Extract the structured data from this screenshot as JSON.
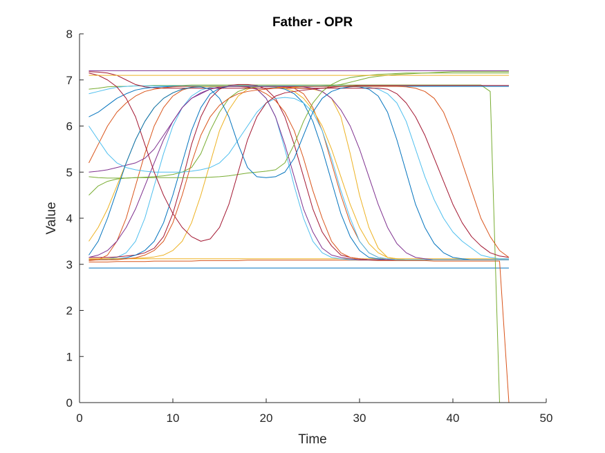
{
  "chart_data": {
    "type": "line",
    "title": "Father - OPR",
    "xlabel": "Time",
    "ylabel": "Value",
    "xlim": [
      0,
      50
    ],
    "ylim": [
      0,
      8
    ],
    "xticks": [
      0,
      10,
      20,
      30,
      40,
      50
    ],
    "yticks": [
      0,
      1,
      2,
      3,
      4,
      5,
      6,
      7,
      8
    ],
    "xtick_labels": [
      "0",
      "10",
      "20",
      "30",
      "40",
      "50"
    ],
    "ytick_labels": [
      "0",
      "1",
      "2",
      "3",
      "4",
      "5",
      "6",
      "7",
      "8"
    ],
    "grid": false,
    "legend": "none",
    "colors": [
      "#0072BD",
      "#D95319",
      "#EDB120",
      "#7E2F8E",
      "#77AC30",
      "#4DBEEE",
      "#A2142F"
    ],
    "x": [
      1,
      2,
      3,
      4,
      5,
      6,
      7,
      8,
      9,
      10,
      11,
      12,
      13,
      14,
      15,
      16,
      17,
      18,
      19,
      20,
      21,
      22,
      23,
      24,
      25,
      26,
      27,
      28,
      29,
      30,
      31,
      32,
      33,
      34,
      35,
      36,
      37,
      38,
      39,
      40,
      41,
      42,
      43,
      44,
      45,
      46
    ],
    "series": [
      {
        "values": [
          2.92,
          2.92,
          2.92,
          2.92,
          2.92,
          2.92,
          2.92,
          2.92,
          2.92,
          2.92,
          2.92,
          2.92,
          2.92,
          2.92,
          2.92,
          2.92,
          2.92,
          2.92,
          2.92,
          2.92,
          2.92,
          2.92,
          2.92,
          2.92,
          2.92,
          2.92,
          2.92,
          2.92,
          2.92,
          2.92,
          2.92,
          2.92,
          2.92,
          2.92,
          2.92,
          2.92,
          2.92,
          2.92,
          2.92,
          2.92,
          2.92,
          2.92,
          2.92,
          2.92,
          2.92,
          2.92
        ]
      },
      {
        "values": [
          3.05,
          3.05,
          3.05,
          3.06,
          3.06,
          3.06,
          3.06,
          3.07,
          3.07,
          3.07,
          3.07,
          3.07,
          3.08,
          3.08,
          3.08,
          3.08,
          3.08,
          3.09,
          3.09,
          3.09,
          3.09,
          3.09,
          3.09,
          3.09,
          3.09,
          3.09,
          3.09,
          3.09,
          3.09,
          3.09,
          3.09,
          3.08,
          3.08,
          3.08,
          3.08,
          3.08,
          3.08,
          3.07,
          3.07,
          3.07,
          3.07,
          3.07,
          3.07,
          3.07,
          3.07,
          0.0
        ]
      },
      {
        "values": [
          3.12,
          3.12,
          3.12,
          3.12,
          3.12,
          3.12,
          3.12,
          3.12,
          3.12,
          3.12,
          3.12,
          3.12,
          3.12,
          3.12,
          3.12,
          3.12,
          3.12,
          3.12,
          3.12,
          3.12,
          3.12,
          3.12,
          3.12,
          3.12,
          3.12,
          3.12,
          3.12,
          3.12,
          3.12,
          3.12,
          3.12,
          3.12,
          3.12,
          3.12,
          3.12,
          3.12,
          3.12,
          3.12,
          3.12,
          3.12,
          3.12,
          3.12,
          3.12,
          3.12,
          3.12,
          3.12
        ]
      },
      {
        "values": [
          7.2,
          7.2,
          7.2,
          7.2,
          7.2,
          7.2,
          7.2,
          7.2,
          7.2,
          7.2,
          7.2,
          7.2,
          7.2,
          7.2,
          7.2,
          7.2,
          7.2,
          7.2,
          7.2,
          7.2,
          7.2,
          7.2,
          7.2,
          7.2,
          7.2,
          7.2,
          7.2,
          7.2,
          7.2,
          7.2,
          7.2,
          7.2,
          7.2,
          7.2,
          7.2,
          7.2,
          7.2,
          7.2,
          7.2,
          7.2,
          7.2,
          7.2,
          7.2,
          7.2,
          7.2,
          7.2
        ]
      },
      {
        "values": [
          6.8,
          6.82,
          6.85,
          6.86,
          6.86,
          6.87,
          6.87,
          6.88,
          6.88,
          6.88,
          6.88,
          6.89,
          6.89,
          6.89,
          6.89,
          6.89,
          6.89,
          6.89,
          6.89,
          6.89,
          6.89,
          6.89,
          6.89,
          6.89,
          6.89,
          6.89,
          6.89,
          6.89,
          6.89,
          6.89,
          6.89,
          6.89,
          6.89,
          6.89,
          6.89,
          6.89,
          6.89,
          6.89,
          6.89,
          6.89,
          6.89,
          6.89,
          6.89,
          6.75,
          0.0,
          0.0
        ]
      },
      {
        "values": [
          3.1,
          3.1,
          3.12,
          3.15,
          3.25,
          3.5,
          4.0,
          4.7,
          5.4,
          6.0,
          6.4,
          6.65,
          6.78,
          6.84,
          6.86,
          6.87,
          6.87,
          6.85,
          6.8,
          6.6,
          6.2,
          5.5,
          4.7,
          4.0,
          3.5,
          3.25,
          3.15,
          3.12,
          3.1,
          3.1,
          3.1,
          3.1,
          3.1,
          3.1,
          3.1,
          3.1,
          3.1,
          3.1,
          3.1,
          3.1,
          3.1,
          3.1,
          3.1,
          3.1,
          3.1,
          3.1
        ]
      },
      {
        "values": [
          3.15,
          3.15,
          3.15,
          3.16,
          3.18,
          3.2,
          3.25,
          3.35,
          3.6,
          4.1,
          4.8,
          5.6,
          6.2,
          6.6,
          6.8,
          6.88,
          6.9,
          6.9,
          6.88,
          6.8,
          6.6,
          6.2,
          5.6,
          4.9,
          4.2,
          3.7,
          3.4,
          3.2,
          3.15,
          3.12,
          3.1,
          3.1,
          3.1,
          3.1,
          3.1,
          3.1,
          3.1,
          3.1,
          3.1,
          3.1,
          3.1,
          3.1,
          3.1,
          3.1,
          3.1,
          3.1
        ]
      },
      {
        "values": [
          3.1,
          3.1,
          3.1,
          3.12,
          3.14,
          3.2,
          3.3,
          3.5,
          3.9,
          4.5,
          5.2,
          5.9,
          6.4,
          6.7,
          6.82,
          6.86,
          6.87,
          6.87,
          6.87,
          6.86,
          6.84,
          6.8,
          6.7,
          6.5,
          6.1,
          5.5,
          4.8,
          4.1,
          3.6,
          3.3,
          3.15,
          3.12,
          3.1,
          3.1,
          3.1,
          3.1,
          3.1,
          3.1,
          3.1,
          3.1,
          3.1,
          3.1,
          3.1,
          3.1,
          3.1,
          3.1
        ]
      },
      {
        "values": [
          3.08,
          3.1,
          3.2,
          3.5,
          4.0,
          4.7,
          5.4,
          6.0,
          6.4,
          6.65,
          6.78,
          6.84,
          6.86,
          6.87,
          6.87,
          6.87,
          6.86,
          6.84,
          6.8,
          6.7,
          6.55,
          6.3,
          5.9,
          5.3,
          4.6,
          4.0,
          3.5,
          3.25,
          3.15,
          3.12,
          3.1,
          3.1,
          3.1,
          3.1,
          3.1,
          3.1,
          3.1,
          3.1,
          3.1,
          3.1,
          3.1,
          3.1,
          3.1,
          3.1,
          3.1,
          3.1
        ]
      },
      {
        "values": [
          3.12,
          3.12,
          3.12,
          3.12,
          3.12,
          3.13,
          3.14,
          3.16,
          3.2,
          3.3,
          3.5,
          3.9,
          4.5,
          5.2,
          5.9,
          6.35,
          6.65,
          6.8,
          6.85,
          6.87,
          6.87,
          6.86,
          6.84,
          6.82,
          6.8,
          6.75,
          6.6,
          6.2,
          5.4,
          4.5,
          3.8,
          3.35,
          3.15,
          3.12,
          3.1,
          3.1,
          3.1,
          3.1,
          3.1,
          3.1,
          3.1,
          3.1,
          3.1,
          3.1,
          3.1,
          3.1
        ]
      },
      {
        "values": [
          5.0,
          5.02,
          5.05,
          5.1,
          5.15,
          5.2,
          5.3,
          5.5,
          5.8,
          6.1,
          6.4,
          6.6,
          6.7,
          6.8,
          6.85,
          6.87,
          6.87,
          6.85,
          6.8,
          6.6,
          6.2,
          5.6,
          4.9,
          4.2,
          3.7,
          3.35,
          3.2,
          3.15,
          3.12,
          3.1,
          3.1,
          3.1,
          3.1,
          3.1,
          3.1,
          3.1,
          3.1,
          3.1,
          3.1,
          3.1,
          3.1,
          3.1,
          3.1,
          3.1,
          3.1,
          3.1
        ]
      },
      {
        "values": [
          4.9,
          4.88,
          4.87,
          4.87,
          4.87,
          4.88,
          4.89,
          4.9,
          4.92,
          4.95,
          5.0,
          5.1,
          5.4,
          5.9,
          6.3,
          6.6,
          6.75,
          6.82,
          6.85,
          6.86,
          6.86,
          6.86,
          6.86,
          6.86,
          6.86,
          6.87,
          6.88,
          6.9,
          6.95,
          7.0,
          7.05,
          7.08,
          7.1,
          7.12,
          7.13,
          7.14,
          7.15,
          7.16,
          7.17,
          7.18,
          7.18,
          7.18,
          7.18,
          7.18,
          7.18,
          7.18
        ]
      },
      {
        "values": [
          6.7,
          6.75,
          6.8,
          6.84,
          6.86,
          6.87,
          6.87,
          6.87,
          6.87,
          6.87,
          6.87,
          6.87,
          6.87,
          6.87,
          6.87,
          6.87,
          6.87,
          6.87,
          6.87,
          6.87,
          6.87,
          6.87,
          6.87,
          6.87,
          6.87,
          6.87,
          6.87,
          6.87,
          6.87,
          6.86,
          6.84,
          6.8,
          6.7,
          6.5,
          6.1,
          5.5,
          4.9,
          4.4,
          4.0,
          3.7,
          3.5,
          3.35,
          3.2,
          3.15,
          3.12,
          3.12
        ]
      },
      {
        "values": [
          7.18,
          7.17,
          7.15,
          7.1,
          7.0,
          6.9,
          6.85,
          6.83,
          6.82,
          6.82,
          6.82,
          6.82,
          6.82,
          6.82,
          6.82,
          6.82,
          6.82,
          6.82,
          6.82,
          6.82,
          6.82,
          6.82,
          6.82,
          6.82,
          6.82,
          6.82,
          6.82,
          6.82,
          6.82,
          6.82,
          6.82,
          6.82,
          6.8,
          6.7,
          6.5,
          6.2,
          5.8,
          5.3,
          4.8,
          4.3,
          3.9,
          3.6,
          3.4,
          3.25,
          3.18,
          3.15
        ]
      },
      {
        "values": [
          6.2,
          6.3,
          6.45,
          6.6,
          6.7,
          6.78,
          6.82,
          6.84,
          6.85,
          6.86,
          6.86,
          6.86,
          6.86,
          6.86,
          6.86,
          6.86,
          6.86,
          6.86,
          6.86,
          6.86,
          6.86,
          6.86,
          6.86,
          6.86,
          6.86,
          6.86,
          6.86,
          6.86,
          6.86,
          6.85,
          6.8,
          6.65,
          6.3,
          5.7,
          5.0,
          4.3,
          3.8,
          3.45,
          3.25,
          3.15,
          3.12,
          3.1,
          3.1,
          3.1,
          3.1,
          3.1
        ]
      },
      {
        "values": [
          5.2,
          5.6,
          6.0,
          6.3,
          6.5,
          6.65,
          6.75,
          6.8,
          6.83,
          6.85,
          6.86,
          6.86,
          6.86,
          6.86,
          6.86,
          6.86,
          6.86,
          6.86,
          6.86,
          6.86,
          6.86,
          6.85,
          6.82,
          6.7,
          6.4,
          5.9,
          5.2,
          4.5,
          3.9,
          3.5,
          3.25,
          3.15,
          3.12,
          3.1,
          3.1,
          3.1,
          3.1,
          3.1,
          3.1,
          3.1,
          3.1,
          3.1,
          3.1,
          3.1,
          3.1,
          3.1
        ]
      },
      {
        "values": [
          3.5,
          3.8,
          4.2,
          4.7,
          5.2,
          5.7,
          6.1,
          6.4,
          6.6,
          6.72,
          6.8,
          6.84,
          6.86,
          6.86,
          6.86,
          6.86,
          6.86,
          6.86,
          6.86,
          6.86,
          6.85,
          6.82,
          6.75,
          6.6,
          6.35,
          6.0,
          5.5,
          4.9,
          4.3,
          3.8,
          3.45,
          3.25,
          3.15,
          3.12,
          3.1,
          3.1,
          3.1,
          3.1,
          3.1,
          3.1,
          3.1,
          3.1,
          3.1,
          3.1,
          3.1,
          3.1
        ]
      },
      {
        "values": [
          3.15,
          3.2,
          3.3,
          3.5,
          3.8,
          4.2,
          4.7,
          5.2,
          5.7,
          6.1,
          6.4,
          6.6,
          6.72,
          6.8,
          6.84,
          6.86,
          6.86,
          6.86,
          6.86,
          6.86,
          6.86,
          6.86,
          6.86,
          6.85,
          6.82,
          6.75,
          6.6,
          6.35,
          6.0,
          5.5,
          4.9,
          4.3,
          3.8,
          3.45,
          3.25,
          3.15,
          3.12,
          3.1,
          3.1,
          3.1,
          3.1,
          3.1,
          3.1,
          3.1,
          3.1,
          3.1
        ]
      },
      {
        "values": [
          4.5,
          4.7,
          4.8,
          4.85,
          4.87,
          4.88,
          4.88,
          4.88,
          4.88,
          4.88,
          4.88,
          4.88,
          4.88,
          4.89,
          4.9,
          4.92,
          4.95,
          4.98,
          5.0,
          5.02,
          5.05,
          5.2,
          5.6,
          6.1,
          6.5,
          6.75,
          6.9,
          7.0,
          7.05,
          7.08,
          7.1,
          7.12,
          7.13,
          7.14,
          7.15,
          7.15,
          7.15,
          7.15,
          7.15,
          7.15,
          7.15,
          7.15,
          7.15,
          7.15,
          7.15,
          7.15
        ]
      },
      {
        "values": [
          6.0,
          5.7,
          5.4,
          5.2,
          5.1,
          5.05,
          5.02,
          5.0,
          5.0,
          5.0,
          5.0,
          5.02,
          5.05,
          5.1,
          5.2,
          5.4,
          5.7,
          6.0,
          6.3,
          6.5,
          6.6,
          6.62,
          6.6,
          6.5,
          6.3,
          5.9,
          5.3,
          4.6,
          4.0,
          3.5,
          3.25,
          3.15,
          3.12,
          3.1,
          3.1,
          3.1,
          3.1,
          3.1,
          3.1,
          3.1,
          3.1,
          3.1,
          3.1,
          3.1,
          3.1,
          3.1
        ]
      },
      {
        "values": [
          7.15,
          7.1,
          7.0,
          6.85,
          6.6,
          6.2,
          5.6,
          5.0,
          4.5,
          4.1,
          3.8,
          3.6,
          3.5,
          3.55,
          3.8,
          4.3,
          5.0,
          5.7,
          6.2,
          6.5,
          6.65,
          6.72,
          6.75,
          6.78,
          6.8,
          6.82,
          6.84,
          6.86,
          6.87,
          6.88,
          6.88,
          6.88,
          6.88,
          6.88,
          6.88,
          6.88,
          6.88,
          6.88,
          6.88,
          6.88,
          6.88,
          6.88,
          6.88,
          6.88,
          6.88,
          6.88
        ]
      },
      {
        "values": [
          3.2,
          3.5,
          4.0,
          4.6,
          5.2,
          5.7,
          6.1,
          6.4,
          6.6,
          6.72,
          6.8,
          6.84,
          6.85,
          6.8,
          6.6,
          6.2,
          5.6,
          5.1,
          4.9,
          4.88,
          4.9,
          5.0,
          5.3,
          5.8,
          6.3,
          6.6,
          6.75,
          6.82,
          6.85,
          6.86,
          6.86,
          6.86,
          6.86,
          6.86,
          6.86,
          6.86,
          6.86,
          6.86,
          6.86,
          6.86,
          6.86,
          6.86,
          6.86,
          6.86,
          6.86,
          6.86
        ]
      },
      {
        "values": [
          3.1,
          3.1,
          3.1,
          3.1,
          3.12,
          3.14,
          3.2,
          3.3,
          3.5,
          3.9,
          4.5,
          5.2,
          5.8,
          6.2,
          6.45,
          6.6,
          6.7,
          6.75,
          6.78,
          6.8,
          6.82,
          6.84,
          6.85,
          6.86,
          6.86,
          6.86,
          6.86,
          6.86,
          6.86,
          6.86,
          6.86,
          6.86,
          6.86,
          6.86,
          6.85,
          6.82,
          6.75,
          6.6,
          6.3,
          5.8,
          5.2,
          4.6,
          4.0,
          3.6,
          3.3,
          3.15
        ]
      },
      {
        "values": [
          7.1,
          7.1,
          7.1,
          7.1,
          7.1,
          7.1,
          7.1,
          7.1,
          7.1,
          7.1,
          7.1,
          7.1,
          7.1,
          7.1,
          7.1,
          7.1,
          7.1,
          7.1,
          7.1,
          7.1,
          7.1,
          7.1,
          7.1,
          7.1,
          7.1,
          7.1,
          7.1,
          7.1,
          7.1,
          7.1,
          7.1,
          7.1,
          7.1,
          7.1,
          7.1,
          7.1,
          7.1,
          7.1,
          7.1,
          7.1,
          7.1,
          7.1,
          7.1,
          7.1,
          7.1,
          7.1
        ]
      }
    ]
  }
}
